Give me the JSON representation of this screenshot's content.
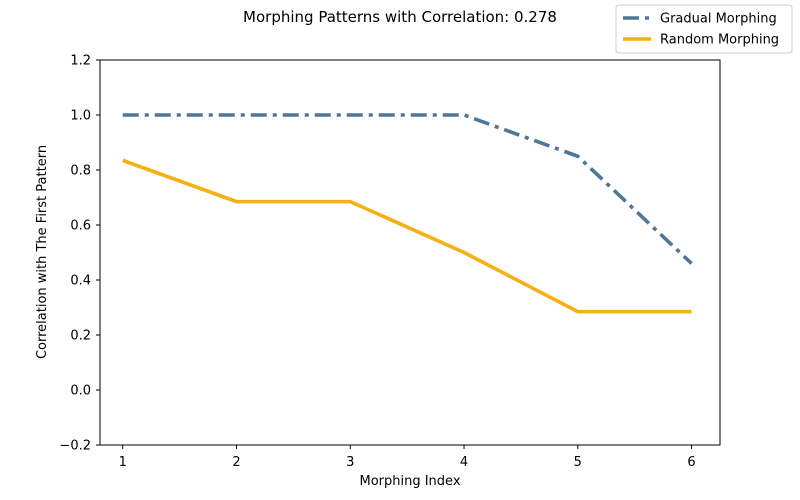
{
  "chart_data": {
    "type": "line",
    "title": "Morphing Patterns with Correlation: 0.278",
    "xlabel": "Morphing Index",
    "ylabel": "Correlation with The First Pattern",
    "x": [
      1,
      2,
      3,
      4,
      5,
      6
    ],
    "xlim": [
      0.8,
      6.25
    ],
    "ylim": [
      -0.2,
      1.2
    ],
    "xticks": [
      1,
      2,
      3,
      4,
      5,
      6
    ],
    "yticks": [
      -0.2,
      0.0,
      0.2,
      0.4,
      0.6,
      0.8,
      1.0,
      1.2
    ],
    "ytick_labels": [
      "−0.2",
      "0.0",
      "0.2",
      "0.4",
      "0.6",
      "0.8",
      "1.0",
      "1.2"
    ],
    "grid": false,
    "legend_position": "top-right",
    "series": [
      {
        "name": "Gradual Morphing",
        "values": [
          1.0,
          1.0,
          1.0,
          1.0,
          0.85,
          0.46
        ],
        "color": "#4e7699",
        "style": "dashdot"
      },
      {
        "name": "Random Morphing",
        "values": [
          0.835,
          0.685,
          0.685,
          0.5,
          0.285,
          0.285
        ],
        "color": "#f7b014",
        "style": "solid"
      }
    ]
  }
}
